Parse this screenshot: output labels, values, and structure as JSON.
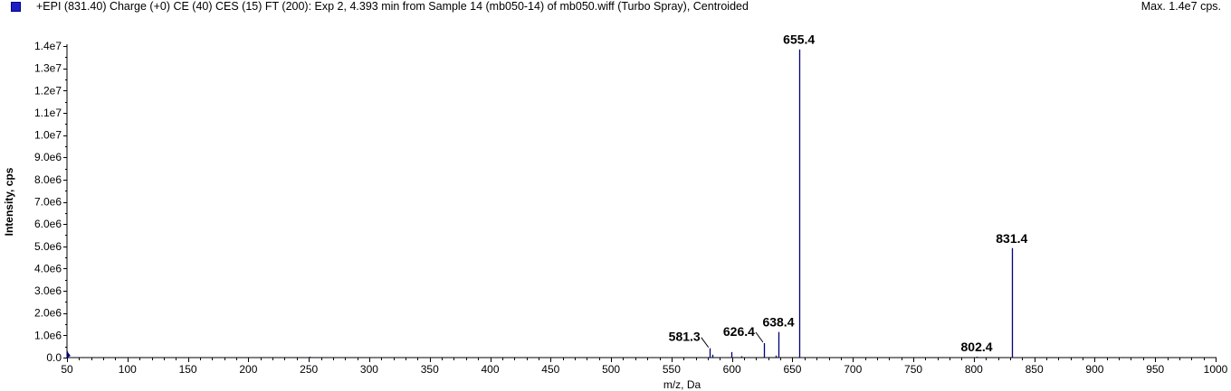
{
  "header": {
    "title": "+EPI (831.40) Charge (+0) CE (40) CES (15) FT (200): Exp 2, 4.393 min from Sample 14 (mb050-14) of mb050.wiff (Turbo Spray), Centroided",
    "max": "Max. 1.4e7 cps.",
    "swatch_color": "#1e1ec8"
  },
  "chart_data": {
    "type": "bar",
    "title": "",
    "xlabel": "m/z, Da",
    "ylabel": "Intensity, cps",
    "xlim": [
      50,
      1000
    ],
    "ylim": [
      0,
      14000000
    ],
    "x_ticks": [
      50,
      100,
      150,
      200,
      250,
      300,
      350,
      400,
      450,
      500,
      550,
      600,
      650,
      700,
      750,
      800,
      850,
      900,
      950,
      1000
    ],
    "x_tick_labels": [
      "50",
      "100",
      "150",
      "200",
      "250",
      "300",
      "350",
      "400",
      "450",
      "500",
      "550",
      "600",
      "650",
      "700",
      "750",
      "800",
      "850",
      "900",
      "950",
      "1000"
    ],
    "y_ticks": [
      0,
      1000000,
      2000000,
      3000000,
      4000000,
      5000000,
      6000000,
      7000000,
      8000000,
      9000000,
      10000000,
      11000000,
      12000000,
      13000000,
      14000000
    ],
    "y_tick_labels": [
      "0.0",
      "1.0e6",
      "2.0e6",
      "3.0e6",
      "4.0e6",
      "5.0e6",
      "6.0e6",
      "7.0e6",
      "8.0e6",
      "9.0e6",
      "1.0e7",
      "1.1e7",
      "1.2e7",
      "1.3e7",
      "1.4e7"
    ],
    "grid": false,
    "color": "#00007a",
    "peaks": [
      {
        "x": 50.2,
        "y": 280000
      },
      {
        "x": 51.0,
        "y": 150000
      },
      {
        "x": 250.3,
        "y": 40000
      },
      {
        "x": 581.3,
        "y": 420000
      },
      {
        "x": 584.0,
        "y": 130000
      },
      {
        "x": 599.5,
        "y": 250000
      },
      {
        "x": 608.0,
        "y": 60000
      },
      {
        "x": 626.4,
        "y": 650000
      },
      {
        "x": 636.5,
        "y": 90000
      },
      {
        "x": 638.4,
        "y": 1150000
      },
      {
        "x": 655.4,
        "y": 13850000
      },
      {
        "x": 802.4,
        "y": 40000
      },
      {
        "x": 831.4,
        "y": 4920000
      }
    ],
    "annotations": [
      {
        "x": 581.3,
        "y": 420000,
        "label": "581.3",
        "leader": true
      },
      {
        "x": 626.4,
        "y": 650000,
        "label": "626.4",
        "leader": true
      },
      {
        "x": 638.4,
        "y": 1150000,
        "label": "638.4",
        "leader": false
      },
      {
        "x": 655.4,
        "y": 13850000,
        "label": "655.4",
        "leader": false
      },
      {
        "x": 802.4,
        "y": 40000,
        "label": "802.4",
        "leader": false
      },
      {
        "x": 831.4,
        "y": 4920000,
        "label": "831.4",
        "leader": false
      }
    ]
  }
}
